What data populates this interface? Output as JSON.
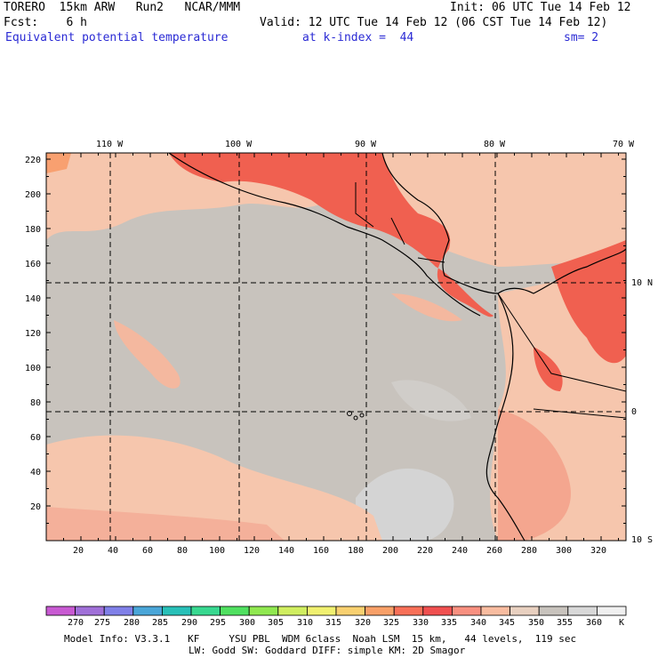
{
  "header": {
    "line1_left": "TORERO  15km ARW   Run2   NCAR/MMM",
    "line1_right": "Init: 06 UTC Tue 14 Feb 12",
    "line2_left": "Fcst:    6 h",
    "line2_right": "Valid: 12 UTC Tue 14 Feb 12 (06 CST Tue 14 Feb 12)",
    "field_title": "Equivalent potential temperature",
    "level": "at k-index =  44",
    "smoothing": "sm= 2"
  },
  "map": {
    "background_color": "#c8c3bd",
    "lon_labels": [
      "110 W",
      "100 W",
      "90 W",
      "80 W",
      "70 W"
    ],
    "lat_labels": [
      "10 N",
      "0",
      "10 S"
    ],
    "x_ticks": [
      "20",
      "40",
      "60",
      "80",
      "100",
      "120",
      "140",
      "160",
      "180",
      "200",
      "220",
      "240",
      "260",
      "280",
      "300",
      "320"
    ],
    "y_ticks": [
      "20",
      "40",
      "60",
      "80",
      "100",
      "120",
      "140",
      "160",
      "180",
      "200",
      "220"
    ]
  },
  "colorbar": {
    "labels": [
      "270",
      "275",
      "280",
      "285",
      "290",
      "295",
      "300",
      "305",
      "310",
      "315",
      "320",
      "325",
      "330",
      "335",
      "340",
      "345",
      "350",
      "355",
      "360"
    ],
    "unit": "K",
    "colors": [
      "#c85ad2",
      "#a070d8",
      "#8080e8",
      "#4aa6d8",
      "#28c0b8",
      "#38d890",
      "#50e060",
      "#90e850",
      "#d0ee60",
      "#f0f070",
      "#f8d070",
      "#f8a068",
      "#f87058",
      "#f05050",
      "#f89080",
      "#f8bca0",
      "#e8d0c0",
      "#c8c3bd",
      "#d8d8d8",
      "#f0f0f0"
    ]
  },
  "footer": {
    "line1": "Model Info: V3.3.1   KF     YSU PBL  WDM 6class  Noah LSM  15 km,   44 levels,  119 sec",
    "line2": "LW: Godd SW: Goddard DIFF: simple KM: 2D Smagor"
  }
}
